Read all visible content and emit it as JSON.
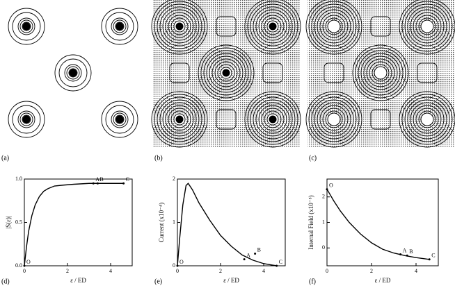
{
  "panel_labels": [
    "(a)",
    "(b)",
    "(c)",
    "(d)",
    "(e)",
    "(f)"
  ],
  "chart_data": [
    {
      "type": "line",
      "ylabel": "|S(ε)|",
      "xlabel": "ε / ED",
      "xlim": [
        0,
        5
      ],
      "xticks": [
        0,
        2,
        4
      ],
      "ylim": [
        0,
        1
      ],
      "yticks": [
        {
          "value": 0,
          "label": "0.0"
        },
        {
          "value": 0.5,
          "label": "0.5"
        },
        {
          "value": 1,
          "label": "1.0"
        }
      ],
      "series": [
        {
          "color": "#000000",
          "x": [
            0,
            0.1,
            0.2,
            0.35,
            0.5,
            0.7,
            0.9,
            1.1,
            1.4,
            1.8,
            2.3,
            3.0,
            3.5,
            4.0,
            4.6
          ],
          "values": [
            0,
            0.22,
            0.4,
            0.58,
            0.7,
            0.8,
            0.86,
            0.89,
            0.92,
            0.93,
            0.94,
            0.95,
            0.95,
            0.95,
            0.95
          ]
        }
      ],
      "annotations": [
        {
          "text": "O",
          "x": 0,
          "y": 0
        },
        {
          "text": "A",
          "x": 3.2,
          "y": 0.95
        },
        {
          "text": "B",
          "x": 3.4,
          "y": 0.95
        },
        {
          "text": "C",
          "x": 4.6,
          "y": 0.95
        }
      ]
    },
    {
      "type": "line",
      "ylabel": "Current (x10⁻⁴)",
      "xlabel": "ε / ED",
      "xlim": [
        0,
        5
      ],
      "xticks": [
        0,
        2,
        4
      ],
      "ylim": [
        0,
        2
      ],
      "yticks": [
        0,
        1,
        2
      ],
      "series": [
        {
          "color": "#000000",
          "x": [
            0,
            0.1,
            0.25,
            0.4,
            0.5,
            0.7,
            1.0,
            1.5,
            2.0,
            2.5,
            3.0,
            3.5,
            4.0,
            4.6
          ],
          "values": [
            0,
            0.6,
            1.4,
            1.85,
            1.9,
            1.75,
            1.45,
            1.05,
            0.7,
            0.45,
            0.25,
            0.13,
            0.05,
            0.0
          ]
        }
      ],
      "annotations": [
        {
          "text": "O",
          "x": 0,
          "y": 0
        },
        {
          "text": "A",
          "x": 3.1,
          "y": 0.15
        },
        {
          "text": "B",
          "x": 3.6,
          "y": 0.28
        },
        {
          "text": "C",
          "x": 4.6,
          "y": 0.0
        }
      ]
    },
    {
      "type": "line",
      "ylabel": "Internal Field (x10⁻⁵)",
      "xlabel": "ε / ED",
      "xlim": [
        0,
        5
      ],
      "xticks": [
        0,
        2,
        4
      ],
      "ylim": [
        -0.7,
        2.7
      ],
      "yticks": [
        0,
        1,
        2
      ],
      "series": [
        {
          "color": "#000000",
          "x": [
            0,
            0.3,
            0.6,
            1.0,
            1.5,
            2.0,
            2.5,
            3.0,
            3.5,
            4.0,
            4.6
          ],
          "values": [
            2.3,
            1.85,
            1.45,
            1.0,
            0.55,
            0.2,
            -0.05,
            -0.2,
            -0.3,
            -0.38,
            -0.45
          ]
        }
      ],
      "annotations": [
        {
          "text": "O",
          "x": 0,
          "y": 2.3
        },
        {
          "text": "A",
          "x": 3.3,
          "y": -0.25
        },
        {
          "text": "B",
          "x": 3.6,
          "y": -0.3
        },
        {
          "text": "C",
          "x": 4.6,
          "y": -0.45
        }
      ]
    }
  ]
}
